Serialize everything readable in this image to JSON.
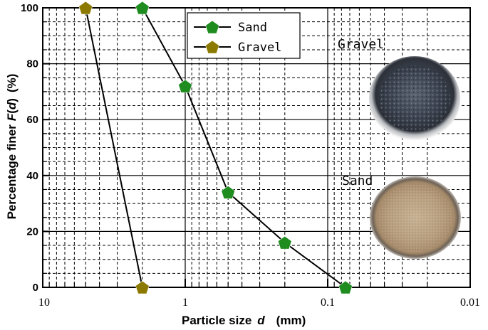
{
  "chart_data": {
    "type": "line",
    "xlabel": "Particle size",
    "xlabel_symbol": "d",
    "xlabel_unit": "(mm)",
    "ylabel": "Percentage finer",
    "ylabel_symbol": "F",
    "ylabel_var": "d",
    "ylabel_unit": "(%)",
    "x_scale": "log",
    "x_reversed": true,
    "xlim": [
      10,
      0.01
    ],
    "ylim": [
      0,
      100
    ],
    "x_ticks": [
      {
        "value": 10,
        "label": "10"
      },
      {
        "value": 1,
        "label": "1"
      },
      {
        "value": 0.1,
        "label": "0.1"
      },
      {
        "value": 0.01,
        "label": "0.01"
      }
    ],
    "y_ticks": [
      {
        "value": 0,
        "label": "0"
      },
      {
        "value": 20,
        "label": "20"
      },
      {
        "value": 40,
        "label": "40"
      },
      {
        "value": 60,
        "label": "60"
      },
      {
        "value": 80,
        "label": "80"
      },
      {
        "value": 100,
        "label": "100"
      }
    ],
    "grid": true,
    "legend_position": "top-center",
    "series": [
      {
        "name": "Sand",
        "color": "#1e8c1e",
        "marker": "pentagon",
        "x": [
          2.0,
          1.0,
          0.5,
          0.2,
          0.075
        ],
        "y": [
          100,
          72,
          34,
          16,
          0
        ]
      },
      {
        "name": "Gravel",
        "color": "#8c7a00",
        "marker": "pentagon",
        "x": [
          5.0,
          2.0
        ],
        "y": [
          100,
          0
        ]
      }
    ],
    "photos": [
      {
        "label": "Gravel",
        "kind": "gravel-photo"
      },
      {
        "label": "Sand",
        "kind": "sand-photo"
      }
    ]
  }
}
